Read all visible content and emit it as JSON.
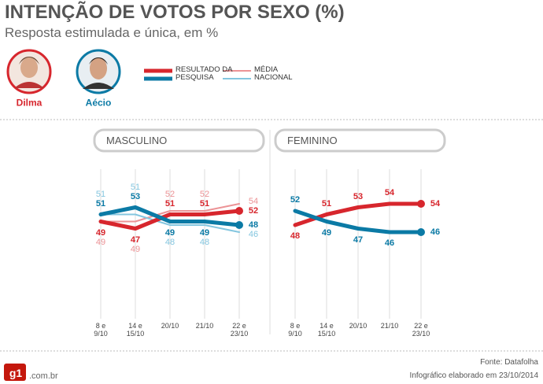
{
  "title": "INTENÇÃO DE VOTOS POR SEXO (%)",
  "subtitle": "Resposta estimulada e única, em %",
  "candidates": [
    {
      "name": "Dilma",
      "color": "#d7262d"
    },
    {
      "name": "Aécio",
      "color": "#0b7aa5"
    }
  ],
  "legend": [
    {
      "label": "RESULTADO DA PESQUISA",
      "colors": [
        "#d7262d",
        "#0b7aa5"
      ],
      "line_width": 5
    },
    {
      "label": "MÉDIA NACIONAL",
      "colors": [
        "#ec9396",
        "#84c6df"
      ],
      "line_width": 2
    }
  ],
  "chart_data": [
    {
      "type": "line",
      "title": "MASCULINO",
      "categories": [
        "8 e 9/10",
        "14 e 15/10",
        "20/10",
        "21/10",
        "22 e 23/10"
      ],
      "ylim": [
        40,
        60
      ],
      "series": [
        {
          "color": "#d7262d",
          "line_width": 5,
          "values": [
            49,
            47,
            51,
            51,
            52
          ]
        },
        {
          "color": "#0b7aa5",
          "line_width": 5,
          "values": [
            51,
            53,
            49,
            49,
            48
          ]
        },
        {
          "color": "#ec9396",
          "line_width": 2,
          "values": [
            49,
            49,
            52,
            52,
            54
          ]
        },
        {
          "color": "#84c6df",
          "line_width": 2,
          "values": [
            51,
            51,
            48,
            48,
            46
          ]
        }
      ]
    },
    {
      "type": "line",
      "title": "FEMININO",
      "categories": [
        "8 e 9/10",
        "14 e 15/10",
        "20/10",
        "21/10",
        "22 e 23/10"
      ],
      "ylim": [
        40,
        60
      ],
      "series": [
        {
          "color": "#d7262d",
          "line_width": 5,
          "values": [
            48,
            51,
            53,
            54,
            54
          ]
        },
        {
          "color": "#0b7aa5",
          "line_width": 5,
          "values": [
            52,
            49,
            47,
            46,
            46
          ]
        }
      ]
    }
  ],
  "source": "Fonte: Datafolha",
  "credit": "Infográfico elaborado em 23/10/2014",
  "logo": {
    "brand": "g1",
    "domain": ".com.br"
  }
}
